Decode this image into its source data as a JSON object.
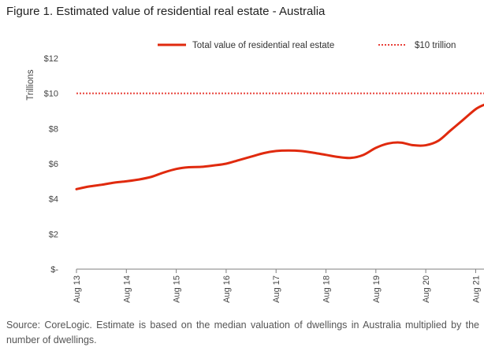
{
  "title": "Figure 1. Estimated value of residential real estate - Australia",
  "source": "Source: CoreLogic. Estimate is based on the median valuation of dwellings in Australia multiplied by the number of dwellings.",
  "colors": {
    "series": "#e02a0e",
    "reference": "#e8413a",
    "axis": "#7f7f7f",
    "text": "#444444"
  },
  "chart_data": {
    "type": "line",
    "ylabel": "Trillions",
    "ylim": [
      0,
      12
    ],
    "yticks": [
      0,
      2,
      4,
      6,
      8,
      10,
      12
    ],
    "ytick_labels": [
      "$-",
      "$2",
      "$4",
      "$6",
      "$8",
      "$10",
      "$12"
    ],
    "xlim": [
      2013.583,
      2021.75
    ],
    "xticks": [
      2013.583,
      2014.583,
      2015.583,
      2016.583,
      2017.583,
      2018.583,
      2019.583,
      2020.583,
      2021.583
    ],
    "xtick_labels": [
      "Aug 13",
      "Aug 14",
      "Aug 15",
      "Aug 16",
      "Aug 17",
      "Aug 18",
      "Aug 19",
      "Aug 20",
      "Aug 21"
    ],
    "grid": false,
    "legend": "top",
    "series": [
      {
        "name": "Total value of residential real estate",
        "style": "solid",
        "x": [
          2013.583,
          2013.833,
          2014.083,
          2014.333,
          2014.583,
          2014.833,
          2015.083,
          2015.333,
          2015.583,
          2015.833,
          2016.083,
          2016.333,
          2016.583,
          2016.833,
          2017.083,
          2017.333,
          2017.583,
          2017.833,
          2018.083,
          2018.333,
          2018.583,
          2018.833,
          2019.083,
          2019.333,
          2019.583,
          2019.833,
          2020.083,
          2020.333,
          2020.583,
          2020.833,
          2021.083,
          2021.333,
          2021.583,
          2021.75
        ],
        "values": [
          4.55,
          4.7,
          4.8,
          4.92,
          5.0,
          5.1,
          5.25,
          5.5,
          5.7,
          5.8,
          5.82,
          5.9,
          6.0,
          6.2,
          6.4,
          6.6,
          6.72,
          6.75,
          6.72,
          6.62,
          6.5,
          6.38,
          6.33,
          6.5,
          6.9,
          7.15,
          7.2,
          7.05,
          7.05,
          7.3,
          7.9,
          8.5,
          9.1,
          9.35
        ]
      },
      {
        "name": "$10 trillion",
        "style": "dotted",
        "x": [
          2013.583,
          2021.75
        ],
        "values": [
          10,
          10
        ]
      }
    ]
  }
}
